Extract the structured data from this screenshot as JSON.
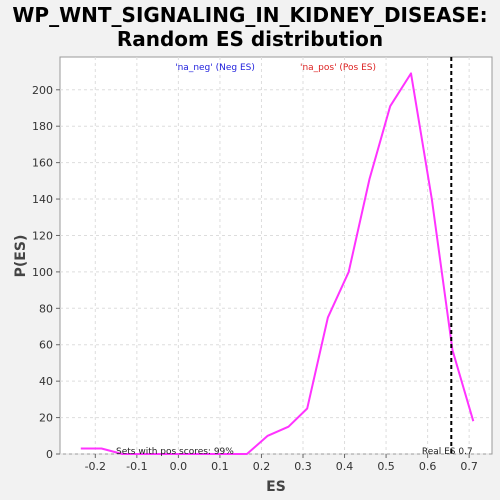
{
  "chart_data": {
    "type": "line",
    "title_line1": "WP_WNT_SIGNALING_IN_KIDNEY_DISEASE:",
    "title_line2": "Random ES distribution",
    "xlabel": "ES",
    "ylabel": "P(ES)",
    "xlim": [
      -0.285,
      0.755
    ],
    "ylim": [
      0,
      218
    ],
    "x_ticks": [
      -0.2,
      -0.1,
      0.0,
      0.1,
      0.2,
      0.3,
      0.4,
      0.5,
      0.6,
      0.7
    ],
    "x_tick_labels": [
      "-0.2",
      "-0.1",
      "0.0",
      "0.1",
      "0.2",
      "0.3",
      "0.4",
      "0.5",
      "0.6",
      "0.7"
    ],
    "y_ticks": [
      0,
      20,
      40,
      60,
      80,
      100,
      120,
      140,
      160,
      180,
      200
    ],
    "y_tick_labels": [
      "0",
      "20",
      "40",
      "60",
      "80",
      "100",
      "120",
      "140",
      "160",
      "180",
      "200"
    ],
    "grid": true,
    "legend": [
      {
        "label": "'na_neg' (Neg ES)",
        "color": "#2222dd"
      },
      {
        "label": "'na_pos' (Pos ES)",
        "color": "#dd2222"
      }
    ],
    "series": [
      {
        "color": "#ff33ff",
        "x": [
          -0.235,
          -0.185,
          -0.135,
          -0.085,
          -0.035,
          0.015,
          0.065,
          0.115,
          0.165,
          0.215,
          0.265,
          0.31,
          0.36,
          0.41,
          0.46,
          0.51,
          0.56,
          0.61,
          0.66,
          0.71
        ],
        "y": [
          3,
          3,
          0,
          0,
          0,
          0,
          0,
          0,
          0,
          10,
          15,
          25,
          75,
          100,
          151,
          191,
          209,
          140,
          57,
          18
        ]
      }
    ],
    "real_es": 0.657,
    "real_es_label": "Real ES 0.7",
    "pos_scores_label": "Sets with pos scores: 99%"
  }
}
